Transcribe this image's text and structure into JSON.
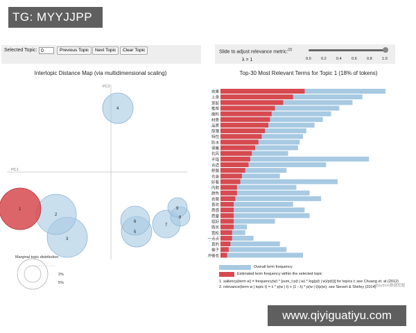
{
  "watermark": {
    "top_label": "TG: MYYJJPP",
    "bottom_url": "www.qiyiguatiyu.com",
    "inner_mark": "@python数据挖掘"
  },
  "controls": {
    "selected_topic_label": "Selected Topic:",
    "selected_topic_value": "0",
    "prev_label": "Previous Topic",
    "next_label": "Next Topic",
    "clear_label": "Clear Topic"
  },
  "slider": {
    "label": "Slide to adjust relevance metric:",
    "note": "(2)",
    "lambda_label": "λ = 1",
    "value": 1.0,
    "ticks": [
      "0.0",
      "0.2",
      "0.4",
      "0.6",
      "0.8",
      "1.0"
    ]
  },
  "left_panel": {
    "title": "Intertopic Distance Map (via multidimensional scaling)",
    "pc1_label": "PC1",
    "pc2_label": "PC2",
    "marginal_title": "Marginal topic distribution",
    "marginal_values": [
      "2%",
      "5%"
    ],
    "topics": [
      {
        "id": "1",
        "selected": true
      },
      {
        "id": "2",
        "selected": false
      },
      {
        "id": "3",
        "selected": false
      },
      {
        "id": "4",
        "selected": false
      },
      {
        "id": "5",
        "selected": false
      },
      {
        "id": "6",
        "selected": false
      },
      {
        "id": "7",
        "selected": false
      },
      {
        "id": "8",
        "selected": false
      },
      {
        "id": "9",
        "selected": false
      }
    ]
  },
  "right_panel": {
    "title": "Top-30 Most Relevant Terms for Topic 1 (18% of tokens)",
    "legend_overall": "Overall term frequency",
    "legend_estimated": "Estimated term frequency within the selected topic",
    "footnote1": "1. saliency(term w) = frequency(w) * [sum_t p(t | w) * log(p(t | w)/p(t))] for topics t; see Chuang et. al (2012)",
    "footnote2": "2. relevance(term w | topic t) = λ * p(w | t) + (1 - λ) * p(w | t)/p(w); see Sievert & Shirley (2014)"
  },
  "colors": {
    "overall": "#a7c9e2",
    "estimated": "#d64a50",
    "circle_fill": "#a7c9e2",
    "circle_selected": "#d64a50"
  },
  "chart_data": {
    "type": "bar",
    "orientation": "horizontal",
    "title": "Top-30 Most Relevant Terms for Topic 1 (18% of tokens)",
    "categories": [
      "效果",
      "上身",
      "穿起",
      "推荐",
      "面料",
      "材质",
      "品质",
      "厚薄",
      "特性",
      "防水",
      "保暖",
      "抗风",
      "不错",
      "合适",
      "舒服",
      "合身",
      "好看",
      "内胆",
      "颜色",
      "衣服",
      "喜欢",
      "质感",
      "质量",
      "挺好",
      "购买",
      "宽松",
      "一点点",
      "真的",
      "袖子",
      "冲锋衣"
    ],
    "series": [
      {
        "name": "Overall term frequency",
        "values": [
          100,
          86,
          80,
          72,
          67,
          62,
          57,
          52,
          50,
          48,
          47,
          41,
          90,
          64,
          40,
          36,
          71,
          46,
          54,
          61,
          44,
          51,
          54,
          33,
          16,
          15,
          20,
          36,
          40,
          50
        ]
      },
      {
        "name": "Estimated term frequency within the selected topic",
        "values": [
          51,
          44,
          38,
          33,
          31,
          30,
          29,
          27,
          25,
          23,
          21,
          19,
          18,
          17,
          15,
          13,
          12,
          10,
          10,
          9,
          8,
          8,
          8,
          8,
          8,
          7,
          7,
          6,
          5,
          4
        ]
      }
    ],
    "xlabel": "",
    "ylabel": "",
    "legend": "bottom"
  }
}
